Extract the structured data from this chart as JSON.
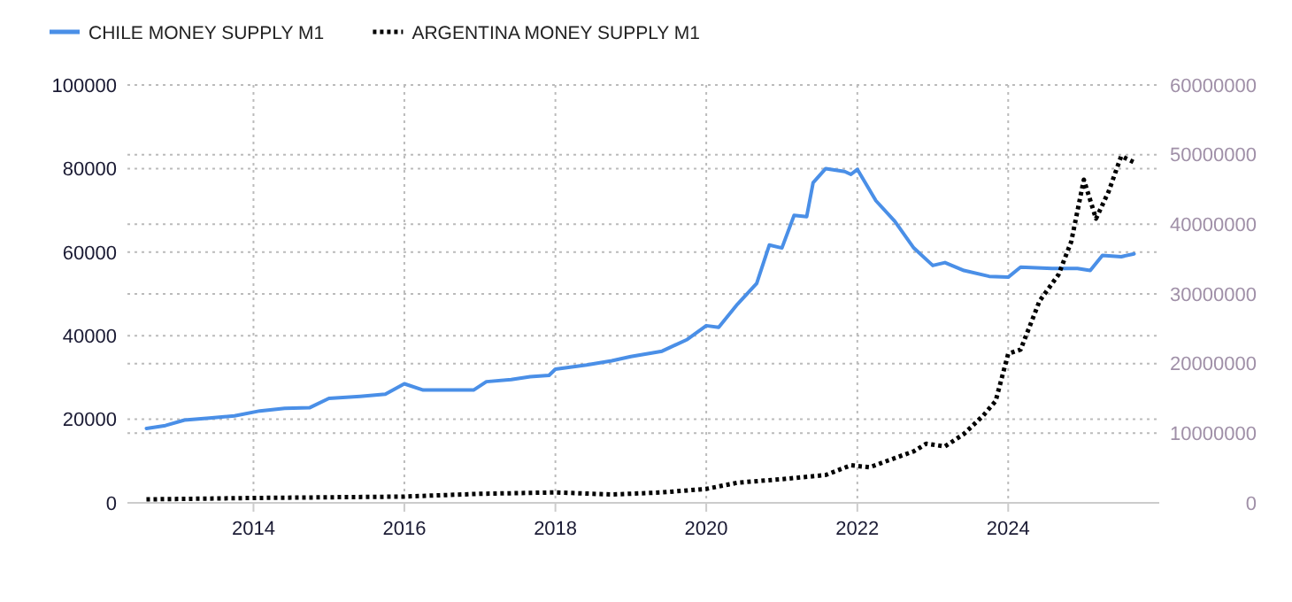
{
  "chart_data": {
    "type": "line",
    "legend": "top left",
    "grid": true,
    "xlim": [
      "2012-05",
      "2026-01"
    ],
    "xticks": [
      "2014",
      "2016",
      "2018",
      "2020",
      "2022",
      "2024"
    ],
    "ylim": [
      0,
      100000
    ],
    "yticks": [
      0,
      20000,
      40000,
      60000,
      80000,
      100000
    ],
    "y2lim": [
      0,
      60000000
    ],
    "y2ticks": [
      0,
      10000000,
      20000000,
      30000000,
      40000000,
      50000000,
      60000000
    ],
    "series": [
      {
        "name": "CHILE MONEY SUPPLY M1",
        "color": "#4a8fe7",
        "line_style": "solid",
        "x": [
          "2012-08",
          "2012-11",
          "2013-02",
          "2013-06",
          "2013-10",
          "2014-02",
          "2014-06",
          "2014-10",
          "2015-01",
          "2015-06",
          "2015-10",
          "2016-01",
          "2016-04",
          "2016-08",
          "2016-12",
          "2017-02",
          "2017-06",
          "2017-09",
          "2017-12",
          "2018-01",
          "2018-06",
          "2018-10",
          "2019-01",
          "2019-06",
          "2019-10",
          "2020-01",
          "2020-03",
          "2020-06",
          "2020-09",
          "2020-11",
          "2021-01",
          "2021-03",
          "2021-05",
          "2021-06",
          "2021-08",
          "2021-11",
          "2021-12",
          "2022-01",
          "2022-04",
          "2022-07",
          "2022-10",
          "2023-01",
          "2023-03",
          "2023-06",
          "2023-10",
          "2024-01",
          "2024-03",
          "2024-08",
          "2024-12",
          "2025-02",
          "2025-04",
          "2025-07",
          "2025-09"
        ],
        "values": [
          17800,
          18500,
          19800,
          20300,
          20800,
          22000,
          22600,
          22800,
          25000,
          25500,
          26000,
          28500,
          27000,
          27000,
          27000,
          29000,
          29500,
          30200,
          30500,
          32000,
          33000,
          34000,
          35000,
          36300,
          39100,
          42400,
          42000,
          47600,
          52500,
          61700,
          61000,
          68800,
          68500,
          76600,
          80000,
          79300,
          78600,
          79800,
          72300,
          67400,
          61000,
          56800,
          57500,
          55600,
          54200,
          54000,
          56400,
          56100,
          56100,
          55600,
          59200,
          58900,
          59600
        ]
      },
      {
        "name": "ARGENTINA MONEY SUPPLY M1",
        "color": "#000000",
        "line_style": "dotted",
        "axis": "y2",
        "x": [
          "2012-08",
          "2014-01",
          "2016-01",
          "2017-01",
          "2018-01",
          "2018-10",
          "2019-06",
          "2020-01",
          "2020-06",
          "2021-01",
          "2021-08",
          "2021-12",
          "2022-03",
          "2022-06",
          "2022-10",
          "2022-12",
          "2023-03",
          "2023-06",
          "2023-09",
          "2023-11",
          "2024-01",
          "2024-03",
          "2024-06",
          "2024-09",
          "2024-11",
          "2025-01",
          "2025-03",
          "2025-05",
          "2025-07",
          "2025-09"
        ],
        "values": [
          500000,
          700000,
          900000,
          1300000,
          1500000,
          1200000,
          1500000,
          2000000,
          2900000,
          3400000,
          4000000,
          5400000,
          5100000,
          6100000,
          7400000,
          8500000,
          8100000,
          9900000,
          12500000,
          14600000,
          21400000,
          22000000,
          29000000,
          32800000,
          37500000,
          46400000,
          40800000,
          44700000,
          49800000,
          48900000
        ]
      }
    ]
  }
}
